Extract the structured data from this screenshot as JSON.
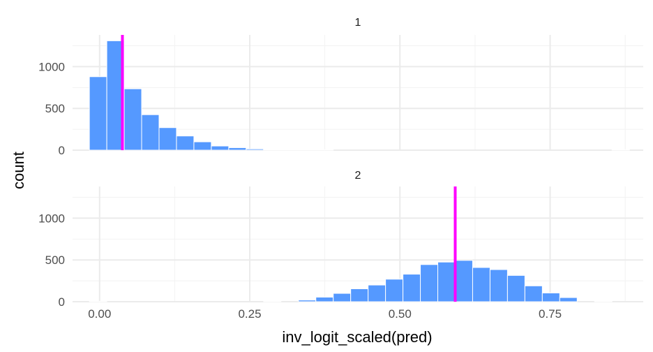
{
  "chart_data": {
    "type": "bar",
    "xlabel": "inv_logit_scaled(pred)",
    "ylabel": "count",
    "bin_width": 0.029,
    "xlim": [
      -0.045,
      0.905
    ],
    "ylim": [
      0,
      1380
    ],
    "x_ticks": [
      0,
      0.25,
      0.5,
      0.75
    ],
    "x_tick_labels": [
      "0.00",
      "0.25",
      "0.50",
      "0.75"
    ],
    "y_ticks": [
      0,
      500,
      1000
    ],
    "y_tick_labels": [
      "0",
      "500",
      "1000"
    ],
    "grid": true,
    "bar_color": "#5599ff",
    "reference_line_color": "#ff00ff",
    "panels": [
      {
        "label": "1",
        "reference_x": 0.038,
        "bins": [
          {
            "x": -0.0025,
            "count": 880
          },
          {
            "x": 0.0265,
            "count": 1310
          },
          {
            "x": 0.0555,
            "count": 735
          },
          {
            "x": 0.0845,
            "count": 425
          },
          {
            "x": 0.1135,
            "count": 270
          },
          {
            "x": 0.1425,
            "count": 170
          },
          {
            "x": 0.1715,
            "count": 100
          },
          {
            "x": 0.2005,
            "count": 50
          },
          {
            "x": 0.2295,
            "count": 30
          },
          {
            "x": 0.2585,
            "count": 15
          },
          {
            "x": 0.2875,
            "count": 8
          },
          {
            "x": 0.3165,
            "count": 4
          },
          {
            "x": 0.3455,
            "count": 2
          },
          {
            "x": 0.3745,
            "count": 1
          },
          {
            "x": 0.8675,
            "count": 1
          }
        ]
      },
      {
        "label": "2",
        "reference_x": 0.592,
        "bins": [
          {
            "x": -0.0025,
            "count": 1
          },
          {
            "x": 0.2875,
            "count": 2
          },
          {
            "x": 0.3455,
            "count": 20
          },
          {
            "x": 0.3745,
            "count": 55
          },
          {
            "x": 0.4035,
            "count": 100
          },
          {
            "x": 0.4325,
            "count": 155
          },
          {
            "x": 0.4615,
            "count": 200
          },
          {
            "x": 0.4905,
            "count": 270
          },
          {
            "x": 0.5195,
            "count": 330
          },
          {
            "x": 0.5485,
            "count": 445
          },
          {
            "x": 0.5775,
            "count": 475
          },
          {
            "x": 0.6065,
            "count": 495
          },
          {
            "x": 0.6355,
            "count": 410
          },
          {
            "x": 0.6645,
            "count": 385
          },
          {
            "x": 0.6935,
            "count": 315
          },
          {
            "x": 0.7225,
            "count": 190
          },
          {
            "x": 0.7515,
            "count": 105
          },
          {
            "x": 0.7805,
            "count": 50
          },
          {
            "x": 0.8385,
            "count": 2
          }
        ]
      }
    ]
  }
}
